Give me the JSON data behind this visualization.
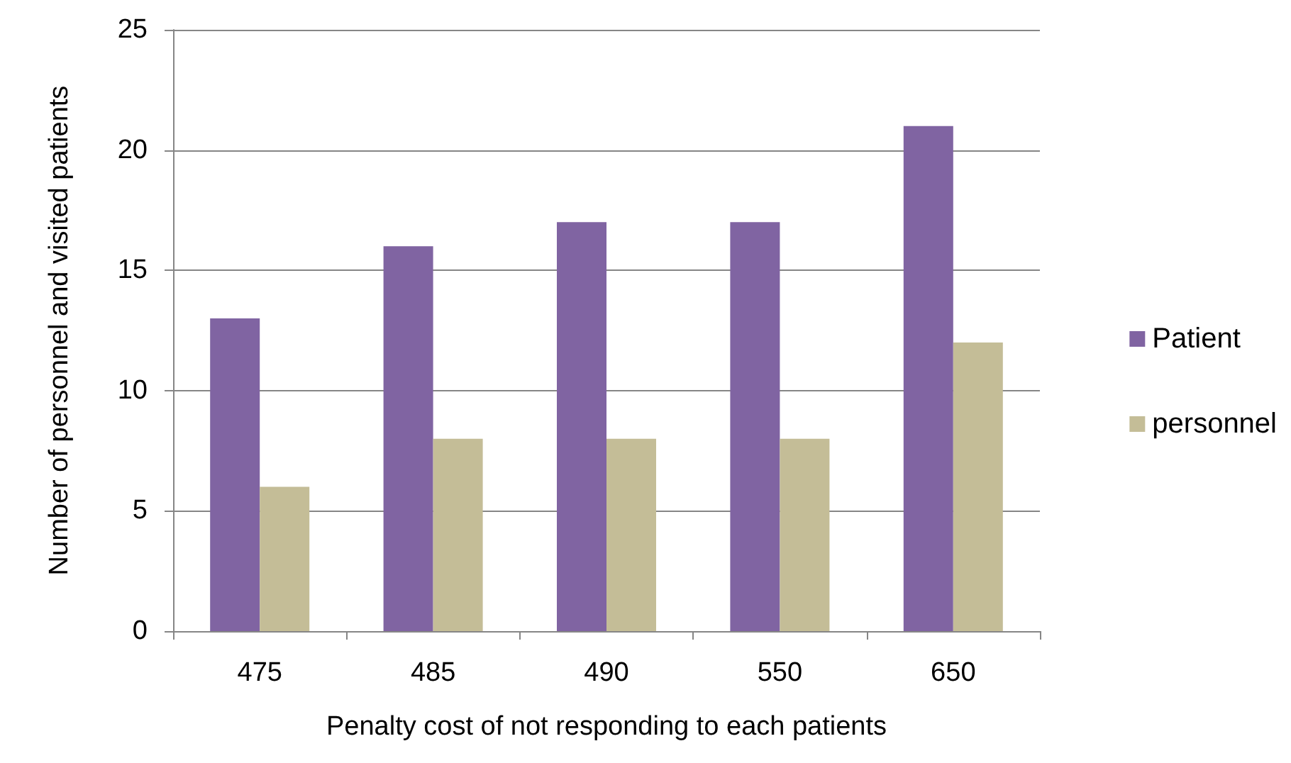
{
  "chart_data": {
    "type": "bar",
    "xlabel": "Penalty cost of not responding to each patients",
    "ylabel": "Number of personnel and visited patients",
    "categories": [
      "475",
      "485",
      "490",
      "550",
      "650"
    ],
    "series": [
      {
        "name": "Patient",
        "color": "#8064a2",
        "values": [
          13,
          16,
          17,
          17,
          21
        ]
      },
      {
        "name": "personnel",
        "color": "#c4bd97",
        "values": [
          6,
          8,
          8,
          8,
          12
        ]
      }
    ],
    "ylim": [
      0,
      25
    ],
    "yticks": [
      0,
      5,
      10,
      15,
      20,
      25
    ],
    "grid": "y",
    "legend": "right"
  }
}
